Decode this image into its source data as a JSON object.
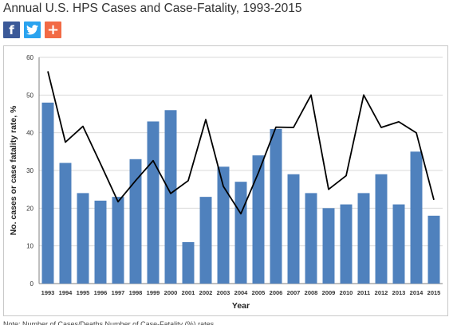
{
  "page": {
    "title": "Annual U.S. HPS Cases and Case-Fatality, 1993-2015",
    "share": [
      {
        "name": "facebook",
        "glyph": "f",
        "color": "#3b5998"
      },
      {
        "name": "twitter",
        "icon": "twitter-bird-icon",
        "color": "#2aa3ef"
      },
      {
        "name": "more",
        "glyph": "+",
        "color": "#f26a45"
      }
    ],
    "note": "Note: Number of Cases/Deaths Number of Case-Fatality (%) rates"
  },
  "chart_data": {
    "type": "bar",
    "title": "",
    "xlabel": "Year",
    "ylabel": "No. cases or case fatality rate, %",
    "ylim": [
      0,
      60
    ],
    "yticks": [
      0,
      10,
      20,
      30,
      40,
      50,
      60
    ],
    "grid": true,
    "legend": "none",
    "categories": [
      "1993",
      "1994",
      "1995",
      "1996",
      "1997",
      "1998",
      "1999",
      "2000",
      "2001",
      "2002",
      "2003",
      "2004",
      "2005",
      "2006",
      "2007",
      "2008",
      "2009",
      "2010",
      "2011",
      "2012",
      "2013",
      "2014",
      "2015"
    ],
    "series": [
      {
        "type": "bar",
        "color": "#4f81bd",
        "values": [
          48,
          32,
          24,
          22,
          23,
          33,
          43,
          46,
          11,
          23,
          31,
          27,
          34,
          41,
          29,
          24,
          20,
          21,
          24,
          29,
          21,
          35,
          18
        ]
      },
      {
        "type": "line",
        "color": "#000000",
        "values": [
          56.3,
          37.5,
          41.7,
          31.8,
          21.7,
          27.3,
          32.6,
          23.9,
          27.3,
          43.5,
          25.8,
          18.5,
          29.4,
          41.5,
          41.4,
          50.0,
          25.0,
          28.6,
          50.0,
          41.4,
          42.9,
          40.0,
          22.2
        ]
      }
    ]
  }
}
